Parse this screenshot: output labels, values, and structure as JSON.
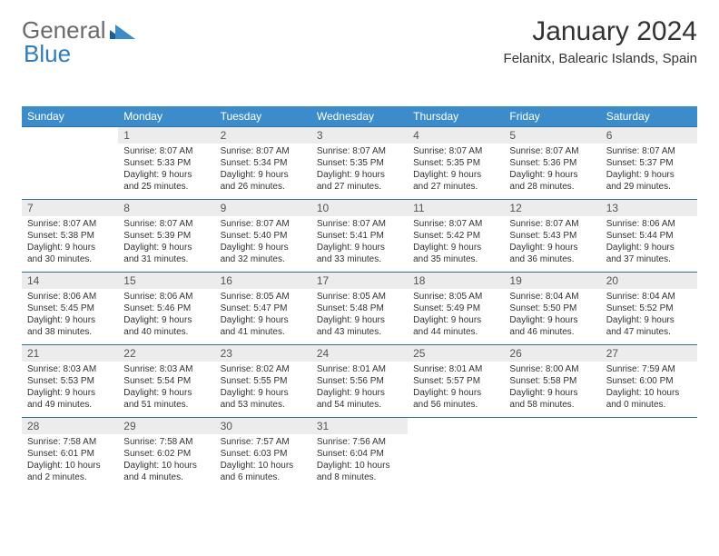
{
  "brand": {
    "part1": "General",
    "part2": "Blue"
  },
  "title": "January 2024",
  "location": "Felanitx, Balearic Islands, Spain",
  "calendar": {
    "header_bg": "#3c8ccc",
    "header_fg": "#ffffff",
    "daynum_bg": "#ececec",
    "border_color": "#2f6fa8",
    "text_fontsize": 10,
    "header_fontsize": 12,
    "days": [
      "Sunday",
      "Monday",
      "Tuesday",
      "Wednesday",
      "Thursday",
      "Friday",
      "Saturday"
    ],
    "weeks": [
      [
        null,
        {
          "n": "1",
          "sr": "Sunrise: 8:07 AM",
          "ss": "Sunset: 5:33 PM",
          "dl": "Daylight: 9 hours and 25 minutes."
        },
        {
          "n": "2",
          "sr": "Sunrise: 8:07 AM",
          "ss": "Sunset: 5:34 PM",
          "dl": "Daylight: 9 hours and 26 minutes."
        },
        {
          "n": "3",
          "sr": "Sunrise: 8:07 AM",
          "ss": "Sunset: 5:35 PM",
          "dl": "Daylight: 9 hours and 27 minutes."
        },
        {
          "n": "4",
          "sr": "Sunrise: 8:07 AM",
          "ss": "Sunset: 5:35 PM",
          "dl": "Daylight: 9 hours and 27 minutes."
        },
        {
          "n": "5",
          "sr": "Sunrise: 8:07 AM",
          "ss": "Sunset: 5:36 PM",
          "dl": "Daylight: 9 hours and 28 minutes."
        },
        {
          "n": "6",
          "sr": "Sunrise: 8:07 AM",
          "ss": "Sunset: 5:37 PM",
          "dl": "Daylight: 9 hours and 29 minutes."
        }
      ],
      [
        {
          "n": "7",
          "sr": "Sunrise: 8:07 AM",
          "ss": "Sunset: 5:38 PM",
          "dl": "Daylight: 9 hours and 30 minutes."
        },
        {
          "n": "8",
          "sr": "Sunrise: 8:07 AM",
          "ss": "Sunset: 5:39 PM",
          "dl": "Daylight: 9 hours and 31 minutes."
        },
        {
          "n": "9",
          "sr": "Sunrise: 8:07 AM",
          "ss": "Sunset: 5:40 PM",
          "dl": "Daylight: 9 hours and 32 minutes."
        },
        {
          "n": "10",
          "sr": "Sunrise: 8:07 AM",
          "ss": "Sunset: 5:41 PM",
          "dl": "Daylight: 9 hours and 33 minutes."
        },
        {
          "n": "11",
          "sr": "Sunrise: 8:07 AM",
          "ss": "Sunset: 5:42 PM",
          "dl": "Daylight: 9 hours and 35 minutes."
        },
        {
          "n": "12",
          "sr": "Sunrise: 8:07 AM",
          "ss": "Sunset: 5:43 PM",
          "dl": "Daylight: 9 hours and 36 minutes."
        },
        {
          "n": "13",
          "sr": "Sunrise: 8:06 AM",
          "ss": "Sunset: 5:44 PM",
          "dl": "Daylight: 9 hours and 37 minutes."
        }
      ],
      [
        {
          "n": "14",
          "sr": "Sunrise: 8:06 AM",
          "ss": "Sunset: 5:45 PM",
          "dl": "Daylight: 9 hours and 38 minutes."
        },
        {
          "n": "15",
          "sr": "Sunrise: 8:06 AM",
          "ss": "Sunset: 5:46 PM",
          "dl": "Daylight: 9 hours and 40 minutes."
        },
        {
          "n": "16",
          "sr": "Sunrise: 8:05 AM",
          "ss": "Sunset: 5:47 PM",
          "dl": "Daylight: 9 hours and 41 minutes."
        },
        {
          "n": "17",
          "sr": "Sunrise: 8:05 AM",
          "ss": "Sunset: 5:48 PM",
          "dl": "Daylight: 9 hours and 43 minutes."
        },
        {
          "n": "18",
          "sr": "Sunrise: 8:05 AM",
          "ss": "Sunset: 5:49 PM",
          "dl": "Daylight: 9 hours and 44 minutes."
        },
        {
          "n": "19",
          "sr": "Sunrise: 8:04 AM",
          "ss": "Sunset: 5:50 PM",
          "dl": "Daylight: 9 hours and 46 minutes."
        },
        {
          "n": "20",
          "sr": "Sunrise: 8:04 AM",
          "ss": "Sunset: 5:52 PM",
          "dl": "Daylight: 9 hours and 47 minutes."
        }
      ],
      [
        {
          "n": "21",
          "sr": "Sunrise: 8:03 AM",
          "ss": "Sunset: 5:53 PM",
          "dl": "Daylight: 9 hours and 49 minutes."
        },
        {
          "n": "22",
          "sr": "Sunrise: 8:03 AM",
          "ss": "Sunset: 5:54 PM",
          "dl": "Daylight: 9 hours and 51 minutes."
        },
        {
          "n": "23",
          "sr": "Sunrise: 8:02 AM",
          "ss": "Sunset: 5:55 PM",
          "dl": "Daylight: 9 hours and 53 minutes."
        },
        {
          "n": "24",
          "sr": "Sunrise: 8:01 AM",
          "ss": "Sunset: 5:56 PM",
          "dl": "Daylight: 9 hours and 54 minutes."
        },
        {
          "n": "25",
          "sr": "Sunrise: 8:01 AM",
          "ss": "Sunset: 5:57 PM",
          "dl": "Daylight: 9 hours and 56 minutes."
        },
        {
          "n": "26",
          "sr": "Sunrise: 8:00 AM",
          "ss": "Sunset: 5:58 PM",
          "dl": "Daylight: 9 hours and 58 minutes."
        },
        {
          "n": "27",
          "sr": "Sunrise: 7:59 AM",
          "ss": "Sunset: 6:00 PM",
          "dl": "Daylight: 10 hours and 0 minutes."
        }
      ],
      [
        {
          "n": "28",
          "sr": "Sunrise: 7:58 AM",
          "ss": "Sunset: 6:01 PM",
          "dl": "Daylight: 10 hours and 2 minutes."
        },
        {
          "n": "29",
          "sr": "Sunrise: 7:58 AM",
          "ss": "Sunset: 6:02 PM",
          "dl": "Daylight: 10 hours and 4 minutes."
        },
        {
          "n": "30",
          "sr": "Sunrise: 7:57 AM",
          "ss": "Sunset: 6:03 PM",
          "dl": "Daylight: 10 hours and 6 minutes."
        },
        {
          "n": "31",
          "sr": "Sunrise: 7:56 AM",
          "ss": "Sunset: 6:04 PM",
          "dl": "Daylight: 10 hours and 8 minutes."
        },
        null,
        null,
        null
      ]
    ]
  }
}
